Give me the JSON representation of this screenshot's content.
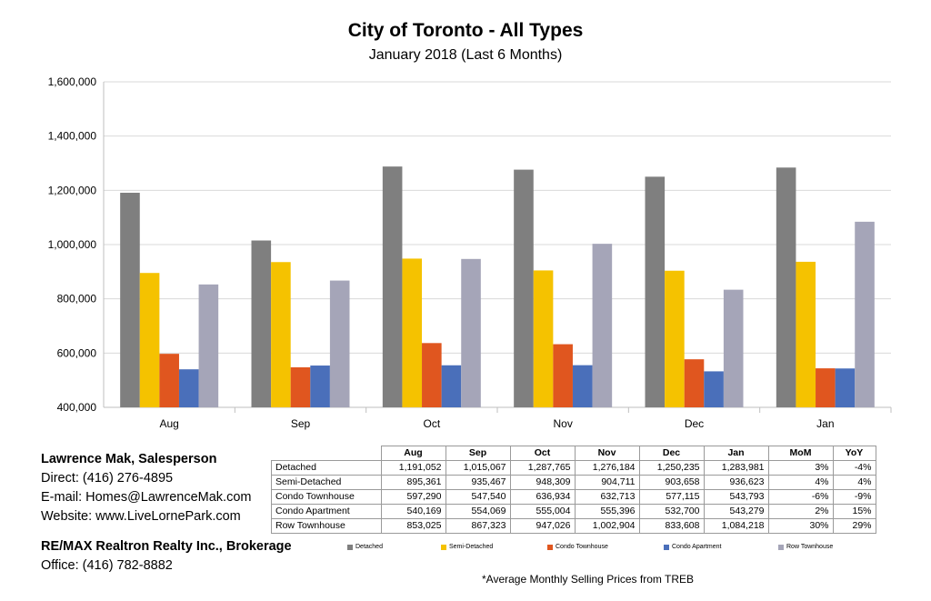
{
  "chart_data": {
    "type": "bar",
    "title": "City of Toronto - All Types",
    "subtitle": "January 2018 (Last 6 Months)",
    "categories": [
      "Aug",
      "Sep",
      "Oct",
      "Nov",
      "Dec",
      "Jan"
    ],
    "ylim": [
      400000,
      1600000
    ],
    "yticks": [
      "400,000",
      "600,000",
      "800,000",
      "1,000,000",
      "1,200,000",
      "1,400,000",
      "1,600,000"
    ],
    "ytick_values": [
      400000,
      600000,
      800000,
      1000000,
      1200000,
      1400000,
      1600000
    ],
    "grid": true,
    "legend_position": "bottom",
    "series": [
      {
        "name": "Detached",
        "color": "#7f7f7f",
        "values": [
          1191052,
          1015067,
          1287765,
          1276184,
          1250235,
          1283981
        ]
      },
      {
        "name": "Semi-Detached",
        "color": "#f5c200",
        "values": [
          895361,
          935467,
          948309,
          904711,
          903658,
          936623
        ]
      },
      {
        "name": "Condo Townhouse",
        "color": "#e0561f",
        "values": [
          597290,
          547540,
          636934,
          632713,
          577115,
          543793
        ]
      },
      {
        "name": "Condo Apartment",
        "color": "#4a6fba",
        "values": [
          540169,
          554069,
          555004,
          555396,
          532700,
          543279
        ]
      },
      {
        "name": "Row Townhouse",
        "color": "#a5a5b8",
        "values": [
          853025,
          867323,
          947026,
          1002904,
          833608,
          1084218
        ]
      }
    ]
  },
  "table": {
    "headers": [
      "Aug",
      "Sep",
      "Oct",
      "Nov",
      "Dec",
      "Jan",
      "MoM",
      "YoY"
    ],
    "rows": [
      {
        "label": "Detached",
        "cells": [
          "1,191,052",
          "1,015,067",
          "1,287,765",
          "1,276,184",
          "1,250,235",
          "1,283,981",
          "3%",
          "-4%"
        ]
      },
      {
        "label": "Semi-Detached",
        "cells": [
          "895,361",
          "935,467",
          "948,309",
          "904,711",
          "903,658",
          "936,623",
          "4%",
          "4%"
        ]
      },
      {
        "label": "Condo Townhouse",
        "cells": [
          "597,290",
          "547,540",
          "636,934",
          "632,713",
          "577,115",
          "543,793",
          "-6%",
          "-9%"
        ]
      },
      {
        "label": "Condo Apartment",
        "cells": [
          "540,169",
          "554,069",
          "555,004",
          "555,396",
          "532,700",
          "543,279",
          "2%",
          "15%"
        ]
      },
      {
        "label": "Row Townhouse",
        "cells": [
          "853,025",
          "867,323",
          "947,026",
          "1,002,904",
          "833,608",
          "1,084,218",
          "30%",
          "29%"
        ]
      }
    ]
  },
  "contact": {
    "name": "Lawrence Mak, Salesperson",
    "direct": "Direct:  (416) 276-4895",
    "email": "E-mail:  Homes@LawrenceMak.com",
    "website": "Website: www.LiveLornePark.com",
    "brokerage": "RE/MAX Realtron Realty Inc., Brokerage",
    "office": "Office: (416) 782-8882"
  },
  "footnote": "*Average Monthly Selling Prices  from TREB"
}
